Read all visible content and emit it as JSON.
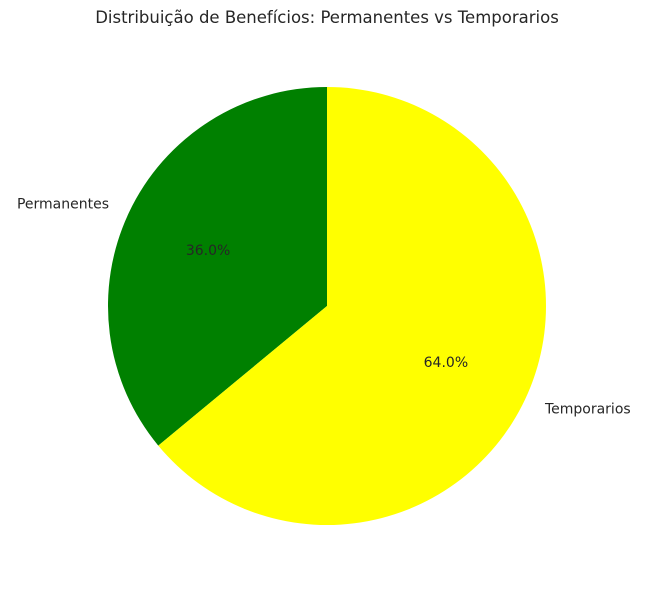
{
  "chart_data": {
    "type": "pie",
    "title": "Distribuição de Benefícios: Permanentes vs Temporarios",
    "slices": [
      {
        "label": "Permanentes",
        "value": 36.0,
        "pct_label": "36.0%",
        "color": "#008000"
      },
      {
        "label": "Temporarios",
        "value": 64.0,
        "pct_label": "64.0%",
        "color": "#ffff00"
      }
    ],
    "start_angle_deg": 90,
    "direction": "counterclockwise"
  }
}
